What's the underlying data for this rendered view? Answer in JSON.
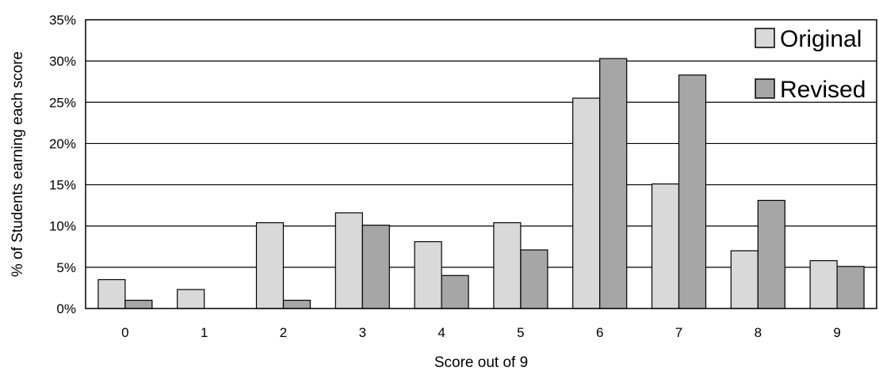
{
  "chart_data": {
    "type": "bar",
    "title": "",
    "xlabel": "Score out of 9",
    "ylabel": "% of Students earning each score",
    "categories": [
      "0",
      "1",
      "2",
      "3",
      "4",
      "5",
      "6",
      "7",
      "8",
      "9"
    ],
    "series": [
      {
        "name": "Original",
        "color": "#d9d9d9",
        "values": [
          3.5,
          2.3,
          10.4,
          11.6,
          8.1,
          10.4,
          25.5,
          15.1,
          7.0,
          5.8
        ]
      },
      {
        "name": "Revised",
        "color": "#a6a6a6",
        "values": [
          1.0,
          0.0,
          1.0,
          10.1,
          4.0,
          7.1,
          30.3,
          28.3,
          13.1,
          5.1
        ]
      }
    ],
    "ylim": [
      0,
      35
    ],
    "yticks": [
      "0%",
      "5%",
      "10%",
      "15%",
      "20%",
      "25%",
      "30%",
      "35%"
    ],
    "grid": true,
    "legend_position": "top-right"
  }
}
